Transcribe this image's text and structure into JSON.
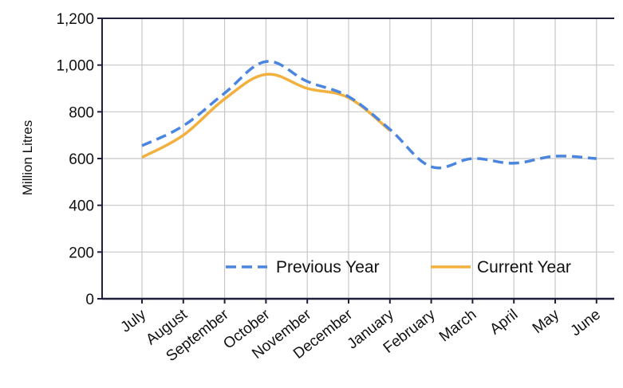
{
  "chart_data": {
    "type": "line",
    "ylabel": "Million Litres",
    "xlabel": "",
    "ylim": [
      0,
      1200
    ],
    "yticks": [
      0,
      200,
      400,
      600,
      800,
      1000,
      1200
    ],
    "ytick_labels": [
      "0",
      "200",
      "400",
      "600",
      "800",
      "1,000",
      "1,200"
    ],
    "categories": [
      "July",
      "August",
      "September",
      "October",
      "November",
      "December",
      "January",
      "February",
      "March",
      "April",
      "May",
      "June"
    ],
    "grid": true,
    "legend_position": "bottom-right",
    "series": [
      {
        "name": "Previous Year",
        "color": "#4a86e0",
        "style": "dashed",
        "values": [
          655,
          740,
          880,
          1015,
          930,
          865,
          725,
          565,
          600,
          580,
          610,
          600
        ]
      },
      {
        "name": "Current Year",
        "color": "#f2b03e",
        "style": "solid",
        "values": [
          605,
          700,
          855,
          960,
          900,
          860,
          720,
          null,
          null,
          null,
          null,
          null
        ]
      }
    ]
  }
}
